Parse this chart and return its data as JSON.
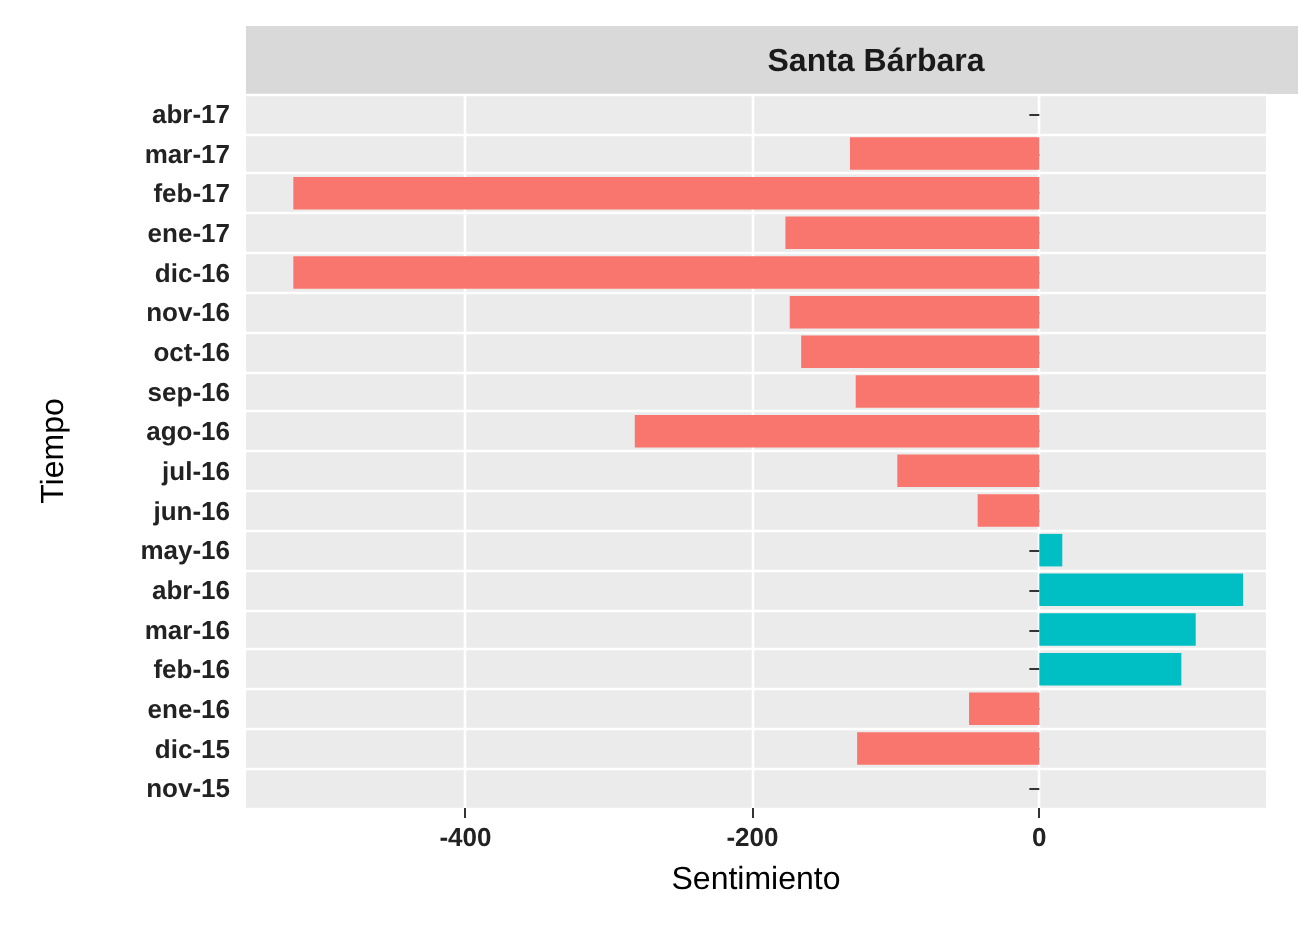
{
  "chart_data": {
    "type": "bar",
    "orientation": "horizontal",
    "title": "Santa Bárbara",
    "xlabel": "Sentimiento",
    "ylabel": "Tiempo",
    "categories": [
      "abr-17",
      "mar-17",
      "feb-17",
      "ene-17",
      "dic-16",
      "nov-16",
      "oct-16",
      "sep-16",
      "ago-16",
      "jul-16",
      "jun-16",
      "may-16",
      "abr-16",
      "mar-16",
      "feb-16",
      "ene-16",
      "dic-15",
      "nov-15"
    ],
    "values": [
      null,
      -132,
      -520,
      -177,
      -520,
      -174,
      -166,
      -128,
      -282,
      -99,
      -43,
      16,
      142,
      109,
      99,
      -49,
      -127,
      null
    ],
    "colors": [
      "#f8766d",
      "#f8766d",
      "#f8766d",
      "#f8766d",
      "#f8766d",
      "#f8766d",
      "#f8766d",
      "#f8766d",
      "#f8766d",
      "#f8766d",
      "#f8766d",
      "#00bfc4",
      "#00bfc4",
      "#00bfc4",
      "#00bfc4",
      "#f8766d",
      "#f8766d",
      "#f8766d"
    ],
    "xlim": [
      -553,
      158
    ],
    "xticks": [
      -400,
      -200,
      0
    ],
    "grid": true
  }
}
